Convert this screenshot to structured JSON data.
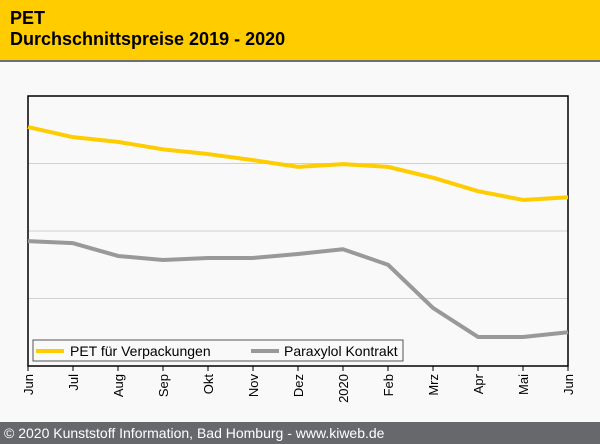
{
  "header": {
    "title_line1": "PET",
    "title_line2": "Durchschnittspreise 2019 - 2020"
  },
  "footer": {
    "text": "© 2020 Kunststoff Information, Bad Homburg - www.kiweb.de"
  },
  "colors": {
    "header_bg": "#ffcc00",
    "footer_bg": "#66686b",
    "pet": "#ffcc00",
    "paraxylol": "#999999",
    "grid": "#d0d0d0"
  },
  "chart_data": {
    "type": "line",
    "title": "PET Durchschnittspreise 2019 - 2020",
    "xlabel": "",
    "ylabel": "",
    "categories": [
      "Jun",
      "Jul",
      "Aug",
      "Sep",
      "Okt",
      "Nov",
      "Dez",
      "2020",
      "Feb",
      "Mrz",
      "Apr",
      "Mai",
      "Jun"
    ],
    "ylim": [
      0,
      4
    ],
    "y_gridlines": [
      1,
      2,
      3
    ],
    "y_tick_labels_shown": false,
    "grid": true,
    "legend": "bottom-left",
    "series": [
      {
        "name": "PET für Verpackungen",
        "color": "#ffcc00",
        "values": [
          3.54,
          3.39,
          3.32,
          3.21,
          3.14,
          3.05,
          2.95,
          2.99,
          2.95,
          2.79,
          2.59,
          2.46,
          2.5
        ]
      },
      {
        "name": "Paraxylol Kontrakt",
        "color": "#999999",
        "values": [
          1.85,
          1.82,
          1.63,
          1.57,
          1.6,
          1.6,
          1.66,
          1.73,
          1.5,
          0.86,
          0.43,
          0.43,
          0.5
        ]
      }
    ]
  }
}
